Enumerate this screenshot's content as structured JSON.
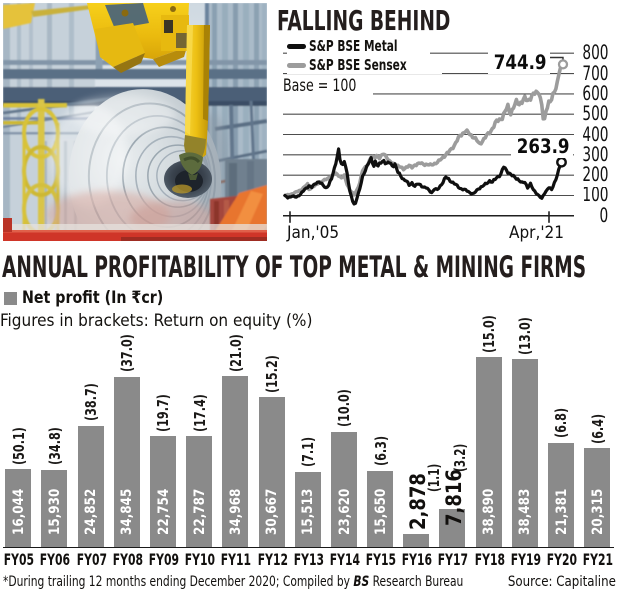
{
  "colors": {
    "title": "#241e1d",
    "text": "#14120f",
    "grid": "#4d4d4d",
    "metal_line": "#0f0f0f",
    "sensex_line": "#9c9c9c",
    "bar": "#8a8a8a",
    "bar_value_text": "#ffffff"
  },
  "chart_data": [
    {
      "type": "line",
      "title": "FALLING BEHIND",
      "legend": [
        {
          "label": "S&P BSE Metal",
          "color": "#0f0f0f"
        },
        {
          "label": "S&P BSE Sensex",
          "color": "#9c9c9c"
        }
      ],
      "base_note": "Base = 100",
      "x_axis_labels": [
        "Jan,'05",
        "Apr,'21"
      ],
      "ylim": [
        0,
        800
      ],
      "y_step": 100,
      "y_tick_labels": [
        "0",
        "100",
        "200",
        "300",
        "400",
        "500",
        "600",
        "700",
        "800"
      ],
      "end_labels": {
        "sensex": "744.9",
        "metal": "263.9"
      },
      "grid": true,
      "legend_position": "top-left",
      "series": [
        {
          "name": "S&P BSE Metal",
          "color": "#0f0f0f",
          "values": [
            100.0,
            94.8,
            87.6,
            92.8,
            92.4,
            95.9,
            98.1,
            92.8,
            91.3,
            97.3,
            98.3,
            105.9,
            117.1,
            121.3,
            131.5,
            137.0,
            137.1,
            147.9,
            145.6,
            138.8,
            151.3,
            156.0,
            157.4,
            165.5,
            166.8,
            159.9,
            161.1,
            150.8,
            141.3,
            138.3,
            141.3,
            149.6,
            171.7,
            182.2,
            207.6,
            236.0,
            255.9,
            290.8,
            329.3,
            275.5,
            256.2,
            252.5,
            266.8,
            240.5,
            210.3,
            160.7,
            120.8,
            97.1,
            70.3,
            58.0,
            61.6,
            85.3,
            112.5,
            133.5,
            161.2,
            196.0,
            206.4,
            221.9,
            245.8,
            255.1,
            268.3,
            286.4,
            258.6,
            243.8,
            269.9,
            250.4,
            245.4,
            260.4,
            258.7,
            266.8,
            272.1,
            255.7,
            258.6,
            264.7,
            260.0,
            258.4,
            245.4,
            241.5,
            256.1,
            235.2,
            213.0,
            211.3,
            195.5,
            183.2,
            181.2,
            173.6,
            171.2,
            166.6,
            149.6,
            154.5,
            163.3,
            149.6,
            145.2,
            155.2,
            155.3,
            155.5,
            153.6,
            142.0,
            141.4,
            141.8,
            136.7,
            135.2,
            127.6,
            116.6,
            114.1,
            122.4,
            129.9,
            134.0,
            129.4,
            134.9,
            147.4,
            153.0,
            162.7,
            182.9,
            190.7,
            185.1,
            183.4,
            169.5,
            165.0,
            165.7,
            156.8,
            155.1,
            151.7,
            138.5,
            134.7,
            133.5,
            127.3,
            131.1,
            130.1,
            121.0,
            119.6,
            114.1,
            107.8,
            109.8,
            111.6,
            117.3,
            128.1,
            131.3,
            133.0,
            143.0,
            144.8,
            150.3,
            159.8,
            157.9,
            162.7,
            173.3,
            165.4,
            165.9,
            178.4,
            178.5,
            187.4,
            193.9,
            192.4,
            205.2,
            227.9,
            239.2,
            236.1,
            224.3,
            209.0,
            210.1,
            205.2,
            197.0,
            198.7,
            189.3,
            180.0,
            182.0,
            172.3,
            166.3,
            166.6,
            163.7,
            164.1,
            154.4,
            136.3,
            146.6,
            160.5,
            141.6,
            128.9,
            122.3,
            109.7,
            105.2,
            100.1,
            90.4,
            86.2,
            99.7,
            108.8,
            121.1,
            130.4,
            137.5,
            137.3,
            128.9,
            142.6,
            164.4,
            178.1,
            200.0,
            228.9,
            245.4,
            263.9
          ]
        },
        {
          "name": "S&P BSE Sensex",
          "color": "#9c9c9c",
          "values": [
            100.0,
            101.7,
            104.8,
            101.9,
            105.2,
            108.3,
            108.2,
            115.1,
            118.7,
            118.6,
            123.8,
            126.0,
            127.5,
            138.2,
            144.3,
            148.9,
            158.0,
            129.9,
            132.5,
            140.2,
            143.2,
            147.8,
            155.0,
            156.2,
            161.0,
            166.8,
            167.0,
            172.6,
            179.3,
            178.2,
            182.7,
            187.7,
            187.8,
            196.7,
            203.0,
            203.1,
            210.1,
            204.2,
            195.6,
            193.6,
            186.8,
            190.7,
            200.7,
            176.7,
            153.4,
            141.5,
            125.0,
            117.6,
            113.6,
            103.1,
            113.6,
            126.8,
            141.6,
            161.0,
            195.4,
            221.6,
            232.1,
            242.1,
            243.0,
            254.7,
            274.9,
            287.2,
            291.5,
            289.0,
            286.4,
            296.7,
            290.0,
            280.8,
            296.5,
            301.5,
            302.9,
            299.7,
            287.0,
            275.0,
            272.3,
            264.1,
            257.8,
            258.3,
            248.4,
            245.6,
            248.5,
            240.9,
            239.6,
            238.1,
            226.9,
            233.2,
            240.7,
            239.8,
            248.5,
            246.1,
            235.8,
            244.5,
            249.3,
            247.4,
            257.1,
            259.5,
            257.9,
            260.5,
            254.0,
            248.7,
            253.9,
            251.4,
            250.5,
            255.0,
            250.9,
            251.2,
            258.2,
            256.6,
            262.3,
            274.8,
            274.7,
            281.1,
            289.0,
            288.3,
            300.3,
            311.9,
            312.7,
            324.8,
            331.1,
            330.6,
            346.4,
            360.1,
            368.1,
            388.8,
            395.5,
            393.0,
            407.1,
            409.0,
            414.0,
            421.7,
            410.2,
            399.3,
            398.4,
            385.0,
            382.7,
            384.7,
            369.9,
            362.6,
            356.6,
            354.1,
            366.3,
            381.1,
            383.6,
            399.2,
            408.2,
            404.0,
            417.9,
            429.9,
            435.6,
            460.3,
            470.4,
            464.7,
            476.4,
            474.1,
            474.2,
            504.4,
            515.0,
            525.4,
            548.2,
            512.7,
            497.2,
            523.1,
            529.3,
            548.9,
            572.5,
            550.4,
            546.8,
            558.6,
            553.7,
            573.9,
            588.8,
            567.6,
            567.5,
            573.5,
            569.5,
            593.1,
            603.5,
            598.2,
            613.2,
            606.6,
            598.3,
            581.5,
            546.0,
            477.3,
            478.0,
            514.3,
            530.8,
            564.6,
            561.4,
            571.2,
            603.9,
            608.3,
            625.1,
            660.2,
            691.5,
            721.7,
            744.9
          ]
        }
      ]
    },
    {
      "type": "bar",
      "title": "ANNUAL PROFITABILITY OF TOP METAL & MINING FIRMS",
      "legend_label": "Net profit (In ₹cr)",
      "brackets_note": "Figures in brackets: Return on equity (%)",
      "categories": [
        "FY05",
        "FY06",
        "FY07",
        "FY08",
        "FY09",
        "FY10",
        "FY11",
        "FY12",
        "FY13",
        "FY14",
        "FY15",
        "FY16",
        "FY17",
        "FY18",
        "FY19",
        "FY20",
        "FY21"
      ],
      "values": [
        16044,
        15930,
        24852,
        34845,
        22754,
        22787,
        34968,
        30667,
        15513,
        23620,
        15650,
        2878,
        7816,
        38890,
        38483,
        21381,
        20315
      ],
      "value_labels": [
        "16,044",
        "15,930",
        "24,852",
        "34,845",
        "22,754",
        "22,787",
        "34,968",
        "30,667",
        "15,513",
        "23,620",
        "15,650",
        "2,878",
        "7,816",
        "38,890",
        "38,483",
        "21,381",
        "20,315"
      ],
      "roe_percent": [
        50.1,
        34.8,
        38.7,
        37.0,
        19.7,
        17.4,
        21.0,
        15.2,
        7.1,
        10.0,
        6.3,
        1.1,
        3.2,
        15.0,
        13.0,
        6.8,
        6.4
      ],
      "roe_labels": [
        "(50.1)",
        "(34.8)",
        "(38.7)",
        "(37.0)",
        "(19.7)",
        "(17.4)",
        "(21.0)",
        "(15.2)",
        "(7.1)",
        "(10.0)",
        "(6.3)",
        "(1.1)",
        "(3.2)",
        "(15.0)",
        "(13.0)",
        "(6.8)",
        "(6.4)"
      ],
      "outside_value_labels": [
        "FY16",
        "FY17"
      ],
      "grid": false,
      "bar_color": "#8a8a8a"
    }
  ],
  "photo": {
    "subject": "steel-coil-on-crane-hook"
  },
  "footer": {
    "note_prefix": "*During trailing 12 months ending December 2020; Compiled by ",
    "note_bs": "BS",
    "note_suffix": " Research Bureau",
    "source": "Source: Capitaline"
  }
}
